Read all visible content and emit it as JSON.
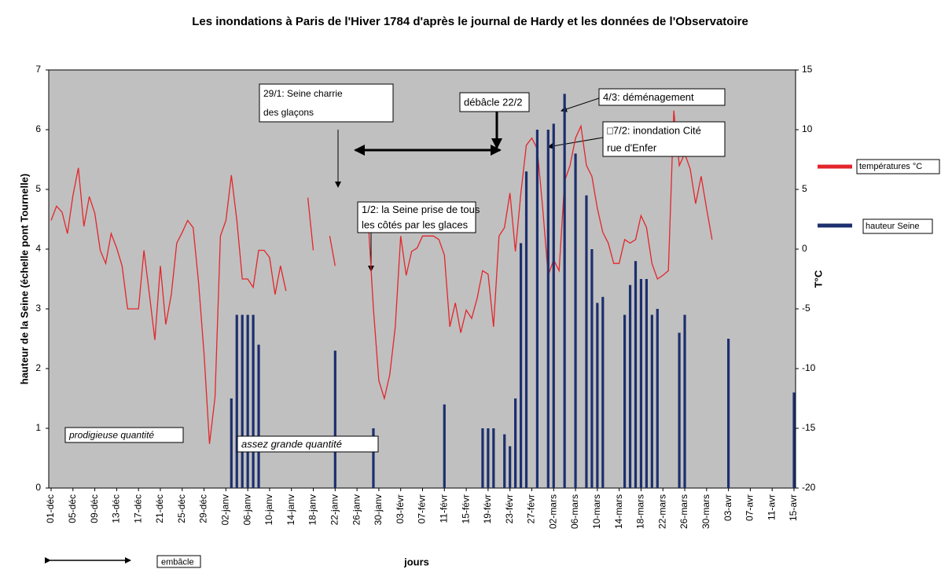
{
  "chart_data": {
    "type": "bar",
    "title": "Les inondations à Paris de l'Hiver 1784 d'après le journal de Hardy et les données de l'Observatoire",
    "x_label": "jours",
    "y_label": "hauteur de la Seine (échelle pont Tournelle)",
    "y2_label": "T°C",
    "categories": [
      "01-déc",
      null,
      null,
      null,
      "05-déc",
      null,
      null,
      null,
      "09-déc",
      null,
      null,
      null,
      "13-déc",
      null,
      null,
      null,
      "17-déc",
      null,
      null,
      null,
      "21-déc",
      null,
      null,
      null,
      "25-déc",
      null,
      null,
      null,
      "29-déc",
      null,
      null,
      null,
      "02-janv",
      null,
      null,
      null,
      "06-janv",
      null,
      null,
      null,
      "10-janv",
      null,
      null,
      null,
      "14-janv",
      null,
      null,
      null,
      "18-janv",
      null,
      null,
      null,
      "22-janv",
      null,
      null,
      null,
      "26-janv",
      null,
      null,
      null,
      "30-janv",
      null,
      null,
      null,
      "03-févr",
      null,
      null,
      null,
      "07-févr",
      null,
      null,
      null,
      "11-févr",
      null,
      null,
      null,
      "15-févr",
      null,
      null,
      null,
      "19-févr",
      null,
      null,
      null,
      "23-févr",
      null,
      null,
      null,
      "27-févr",
      null,
      null,
      null,
      "02-mars",
      null,
      null,
      null,
      "06-mars",
      null,
      null,
      null,
      "10-mars",
      null,
      null,
      null,
      "14-mars",
      null,
      null,
      null,
      "18-mars",
      null,
      null,
      null,
      "22-mars",
      null,
      null,
      null,
      "26-mars",
      null,
      null,
      null,
      "30-mars",
      null,
      null,
      null,
      "03-avr",
      null,
      null,
      null,
      "07-avr",
      null,
      null,
      null,
      "11-avr",
      null,
      null,
      null,
      "15-avr"
    ],
    "series": [
      {
        "name": "températures °C",
        "type": "line",
        "axis": "y2",
        "color": "#e3262b",
        "values": [
          2.4,
          3.6,
          3.1,
          1.3,
          4.5,
          6.8,
          1.9,
          4.4,
          3.0,
          -0.1,
          -1.2,
          1.3,
          0.1,
          -1.4,
          -5,
          -5,
          -5,
          -0.1,
          -3.8,
          -7.6,
          -1.4,
          -6.3,
          -3.8,
          0.5,
          1.4,
          2.4,
          1.8,
          -2.8,
          -8.8,
          -16.3,
          -12.4,
          1.1,
          2.4,
          6.2,
          2.4,
          -2.5,
          -2.5,
          -3.2,
          -0.1,
          -0.1,
          -0.7,
          -3.8,
          -1.4,
          -3.5,
          null,
          null,
          null,
          4.3,
          -0.1,
          null,
          null,
          1.1,
          -1.4,
          null,
          null,
          null,
          null,
          null,
          2.8,
          -5,
          -11,
          -12.5,
          -10.5,
          -6.5,
          1.1,
          -2.2,
          -0.2,
          0.1,
          1.1,
          1.1,
          1.1,
          0.8,
          -0.5,
          -6.5,
          -4.5,
          -7,
          -5.1,
          -5.8,
          -4.1,
          -1.8,
          -2.1,
          -6.5,
          1.1,
          1.8,
          4.7,
          -0.2,
          4.7,
          8.7,
          9.3,
          8.4,
          3.4,
          -2.2,
          -0.9,
          -1.8,
          5.7,
          7.0,
          9.3,
          10.3,
          7.0,
          6.1,
          3.4,
          1.4,
          0.5,
          -1.2,
          -1.2,
          0.8,
          0.5,
          0.8,
          2.8,
          1.8,
          -1.2,
          -2.5,
          -2.2,
          -1.8,
          11.6,
          7.0,
          8.0,
          6.7,
          3.8,
          6.1,
          3.4,
          0.8,
          null,
          null,
          null,
          null,
          null,
          null,
          null,
          null,
          null,
          null,
          null,
          null,
          null,
          null,
          null
        ]
      },
      {
        "name": "hauteur Seine",
        "type": "bar",
        "color": "#1c2f6e",
        "values": [
          null,
          null,
          null,
          null,
          null,
          null,
          null,
          null,
          null,
          null,
          null,
          null,
          null,
          null,
          null,
          null,
          null,
          null,
          null,
          null,
          null,
          null,
          null,
          null,
          null,
          null,
          null,
          null,
          null,
          null,
          null,
          null,
          null,
          1.5,
          2.9,
          2.9,
          2.9,
          2.9,
          2.4,
          null,
          null,
          null,
          null,
          null,
          null,
          null,
          null,
          null,
          null,
          null,
          null,
          null,
          2.3,
          null,
          null,
          null,
          null,
          null,
          null,
          1.0,
          null,
          null,
          null,
          null,
          null,
          null,
          null,
          null,
          null,
          null,
          null,
          null,
          1.4,
          null,
          null,
          null,
          null,
          null,
          null,
          1.0,
          1.0,
          1.0,
          null,
          0.9,
          0.7,
          1.5,
          4.1,
          5.3,
          null,
          6.0,
          null,
          6.0,
          6.1,
          null,
          6.6,
          null,
          5.6,
          null,
          4.9,
          4.0,
          3.1,
          3.2,
          null,
          null,
          null,
          2.9,
          3.4,
          3.8,
          3.5,
          3.5,
          2.9,
          3.0,
          null,
          null,
          null,
          2.6,
          2.9,
          null,
          null,
          null,
          null,
          null,
          null,
          null,
          2.5,
          null,
          null,
          null,
          null,
          null,
          null,
          null,
          null,
          null,
          null,
          null,
          1.6
        ]
      }
    ],
    "ylim": [
      0,
      7
    ],
    "yticks": [
      0,
      1,
      2,
      3,
      4,
      5,
      6,
      7
    ],
    "y2lim": [
      -20,
      15
    ],
    "y2ticks": [
      -20,
      -15,
      -10,
      -5,
      0,
      5,
      10,
      15
    ],
    "grid": false,
    "legend": "right",
    "annotations": [
      {
        "lines": [
          "29/1: Seine charrie",
          "des glaçons"
        ]
      },
      {
        "lines": [
          "débâcle 22/2"
        ]
      },
      {
        "lines": [
          "4/3: déménagement"
        ]
      },
      {
        "lines": [
          "□7/2: inondation  Cité",
          "rue d'Enfer"
        ]
      },
      {
        "lines": [
          "1/2: la Seine prise de tous",
          "les côtés par les glaces"
        ]
      },
      {
        "lines": [
          "prodigieuse quantité"
        ],
        "italic": true
      },
      {
        "lines": [
          "assez grande quantité"
        ],
        "italic": true
      },
      {
        "lines": [
          "embâcle"
        ]
      }
    ]
  }
}
